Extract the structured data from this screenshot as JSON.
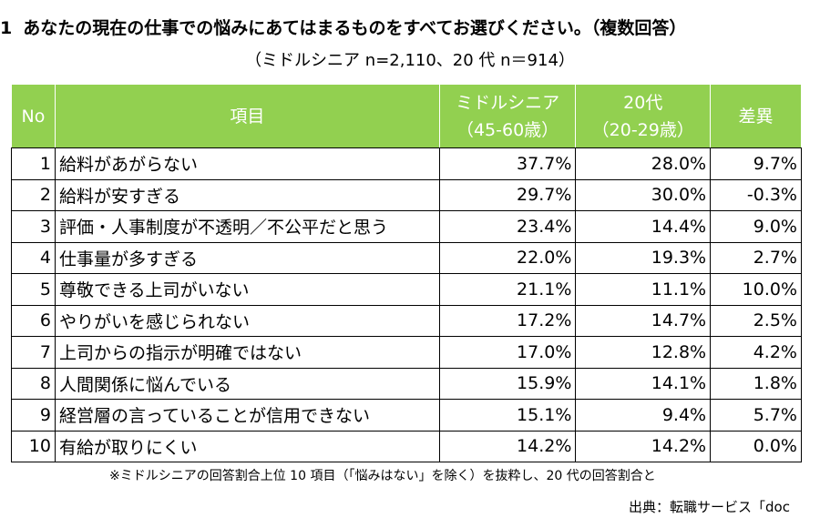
{
  "header": {
    "number": "1",
    "title": "あなたの現在の仕事での悩みにあてはまるものをすべてお選びください。（複数回答）",
    "subtitle": "（ミドルシニア n=2,110、20 代 n＝914）"
  },
  "table": {
    "columns": [
      [
        "No"
      ],
      [
        "項目"
      ],
      [
        "ミドルシニア",
        "（45-60歳）"
      ],
      [
        "20代",
        "（20-29歳）"
      ],
      [
        "差異"
      ]
    ],
    "rows": [
      [
        "1",
        "給料があがらない",
        "37.7%",
        "28.0%",
        "9.7%"
      ],
      [
        "2",
        "給料が安すぎる",
        "29.7%",
        "30.0%",
        "-0.3%"
      ],
      [
        "3",
        "評価・人事制度が不透明／不公平だと思う",
        "23.4%",
        "14.4%",
        "9.0%"
      ],
      [
        "4",
        "仕事量が多すぎる",
        "22.0%",
        "19.3%",
        "2.7%"
      ],
      [
        "5",
        "尊敬できる上司がいない",
        "21.1%",
        "11.1%",
        "10.0%"
      ],
      [
        "6",
        "やりがいを感じられない",
        "17.2%",
        "14.7%",
        "2.5%"
      ],
      [
        "7",
        "上司からの指示が明確ではない",
        "17.0%",
        "12.8%",
        "4.2%"
      ],
      [
        "8",
        "人間関係に悩んでいる",
        "15.9%",
        "14.1%",
        "1.8%"
      ],
      [
        "9",
        "経営層の言っていることが信用できない",
        "15.1%",
        "9.4%",
        "5.7%"
      ],
      [
        "10",
        "有給が取りにくい",
        "14.2%",
        "14.2%",
        "0.0%"
      ]
    ]
  },
  "footnote": "※ミドルシニアの回答割合上位 10 項目（「悩みはない」を除く）を抜粋し、20 代の回答割合と",
  "source": "出典：転職サービス「doc"
}
